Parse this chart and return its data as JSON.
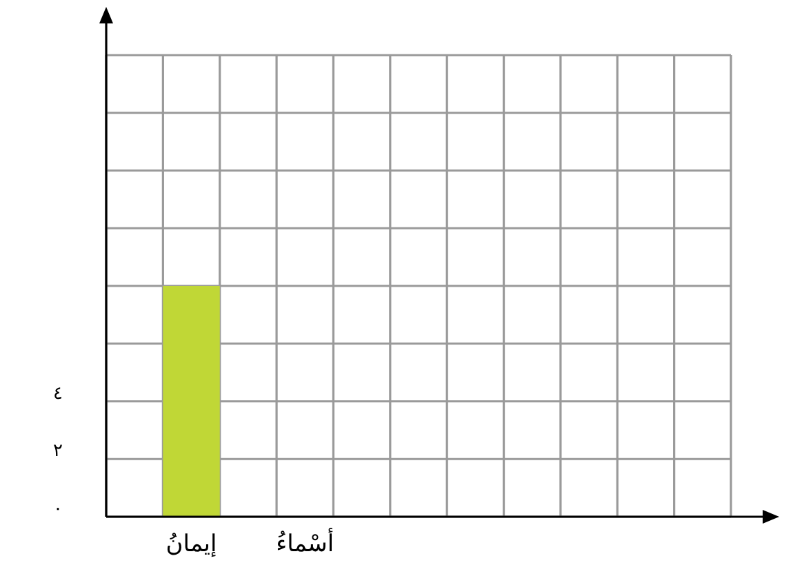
{
  "chart_data": {
    "type": "bar",
    "categories": [
      null,
      "إيمانُ",
      null,
      "أسْماءُ",
      null,
      null,
      null,
      null,
      null,
      null,
      null
    ],
    "values": [
      null,
      8,
      null,
      null,
      null,
      null,
      null,
      null,
      null,
      null,
      null
    ],
    "color": "#c0d736",
    "ylim": [
      0,
      16
    ],
    "yticks": [
      {
        "value": 0,
        "label": "٠"
      },
      {
        "value": 2,
        "label": "٢"
      },
      {
        "value": 4,
        "label": "٤"
      },
      {
        "value": 6,
        "label": null
      },
      {
        "value": 8,
        "label": null
      },
      {
        "value": 10,
        "label": null
      },
      {
        "value": 12,
        "label": null
      },
      {
        "value": 14,
        "label": null
      },
      {
        "value": 16,
        "label": null
      }
    ],
    "grid": true
  }
}
